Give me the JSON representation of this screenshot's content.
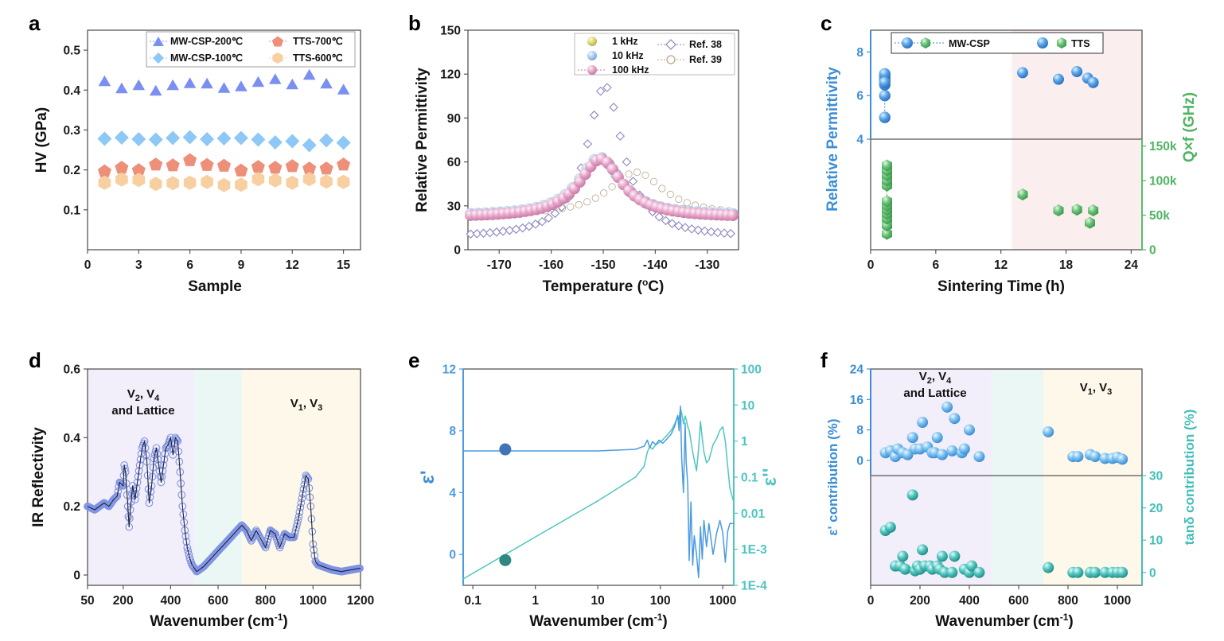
{
  "chart_data": [
    {
      "panel": "a",
      "type": "scatter",
      "xlabel": "Sample",
      "ylabel": "HV (GPa)",
      "xlim": [
        0,
        16
      ],
      "ylim": [
        0,
        0.55
      ],
      "xticks": [
        "0",
        "3",
        "6",
        "9",
        "12",
        "15"
      ],
      "yticks": [
        "0.1",
        "0.2",
        "0.3",
        "0.4",
        "0.5"
      ],
      "legend_position": "top",
      "x": [
        1,
        2,
        3,
        4,
        5,
        6,
        7,
        8,
        9,
        10,
        11,
        12,
        13,
        14,
        15
      ],
      "series": [
        {
          "name": "MW-CSP-200℃",
          "color": "#7b8ff0",
          "marker": "triangle",
          "values": [
            0.421,
            0.403,
            0.411,
            0.397,
            0.411,
            0.416,
            0.415,
            0.404,
            0.408,
            0.419,
            0.426,
            0.413,
            0.437,
            0.415,
            0.4
          ]
        },
        {
          "name": "MW-CSP-100℃",
          "color": "#8dc8f6",
          "marker": "diamond",
          "values": [
            0.278,
            0.281,
            0.277,
            0.276,
            0.28,
            0.282,
            0.277,
            0.279,
            0.28,
            0.276,
            0.269,
            0.272,
            0.262,
            0.274,
            0.268
          ]
        },
        {
          "name": "TTS-700℃",
          "color": "#ee8f7a",
          "marker": "pentagon",
          "values": [
            0.196,
            0.205,
            0.199,
            0.213,
            0.211,
            0.224,
            0.212,
            0.21,
            0.198,
            0.207,
            0.205,
            0.209,
            0.203,
            0.203,
            0.213
          ]
        },
        {
          "name": "TTS-600℃",
          "color": "#f8cfa0",
          "marker": "hexagon",
          "values": [
            0.168,
            0.176,
            0.175,
            0.165,
            0.167,
            0.168,
            0.17,
            0.162,
            0.163,
            0.177,
            0.174,
            0.168,
            0.177,
            0.171,
            0.17
          ]
        }
      ]
    },
    {
      "panel": "b",
      "type": "line",
      "xlabel": "Temperature (",
      "xlabel_sup": "o",
      "xlabel_end": "C)",
      "ylabel": "Relative Permittivity",
      "xlim": [
        -176,
        -124
      ],
      "ylim": [
        0,
        150
      ],
      "xticks": [
        "-170",
        "-160",
        "-150",
        "-140",
        "-130"
      ],
      "yticks": [
        "0",
        "30",
        "60",
        "90",
        "120",
        "150"
      ],
      "legend_position": "top-right",
      "series": [
        {
          "name": "1 kHz",
          "color": "#d8d87a",
          "marker": "sphere",
          "model": "peak",
          "peak_x": -150.7,
          "peak_y": 63,
          "base": 23,
          "width": 5
        },
        {
          "name": "10 kHz",
          "color": "#a8cdf0",
          "marker": "sphere",
          "model": "peak",
          "peak_x": -150.7,
          "peak_y": 63,
          "base": 23,
          "width": 5
        },
        {
          "name": "100 kHz",
          "color": "#e4a6c7",
          "marker": "sphere",
          "model": "peak",
          "peak_x": -150.5,
          "peak_y": 62,
          "base": 22,
          "width": 5
        },
        {
          "name": "Ref. 38",
          "color": "#8a87bf",
          "marker": "open-diamond",
          "model": "peak",
          "peak_x": -149.7,
          "peak_y": 112,
          "base": 8,
          "width": 4.2
        },
        {
          "name": "Ref. 39",
          "color": "#b9a48d",
          "marker": "open-circle",
          "model": "peak",
          "peak_x": -143.7,
          "peak_y": 53,
          "base": 23,
          "width": 6.5
        }
      ]
    },
    {
      "panel": "c",
      "type": "scatter",
      "xlabel": "Sintering Time",
      "xlabel_unit": "(h)",
      "ylabel_left": "Relative Permittivity",
      "ylabel_right": "Q×f (GHz)",
      "xlim": [
        0,
        25
      ],
      "ylim_top": [
        4,
        9
      ],
      "ylim_bottom": [
        0,
        160000
      ],
      "xticks": [
        "0",
        "6",
        "12",
        "18",
        "24"
      ],
      "yticks_top": [
        "4",
        "6",
        "8"
      ],
      "yticks_bottom": [
        "0",
        "50k",
        "100k",
        "150k"
      ],
      "shaded_from": 13,
      "legend": {
        "csp": "MW-CSP",
        "tts": "TTS"
      },
      "csp_permittivity": {
        "x": [
          1.3,
          1.3,
          1.3,
          1.3,
          1.3,
          1.3,
          1.3,
          1.3
        ],
        "y": [
          5.0,
          6.0,
          6.5,
          6.7,
          6.8,
          6.9,
          7.0,
          6.6
        ]
      },
      "tts_permittivity": {
        "x": [
          14,
          17.3,
          19,
          20,
          20.5
        ],
        "y": [
          7.05,
          6.75,
          7.1,
          6.8,
          6.6
        ]
      },
      "csp_qf": {
        "x": [
          1.5,
          1.5,
          1.5,
          1.5,
          1.5,
          1.5,
          1.5,
          1.5,
          1.5,
          1.5,
          1.5,
          1.5
        ],
        "y": [
          23000,
          35000,
          45000,
          52000,
          58000,
          64000,
          70000,
          93000,
          100000,
          108000,
          115000,
          122000
        ]
      },
      "tts_qf": {
        "x": [
          14,
          17.3,
          19,
          20.2,
          20.5
        ],
        "y": [
          80000,
          57000,
          58000,
          39000,
          57000
        ]
      }
    },
    {
      "panel": "d",
      "type": "line",
      "xlabel": "Wavenumber",
      "xlabel_unit": "(cm-1)",
      "ylabel": "IR Reflectivity",
      "xlim": [
        50,
        1200
      ],
      "ylim": [
        -0.03,
        0.6
      ],
      "xticks": [
        "50",
        "200",
        "400",
        "600",
        "800",
        "1000",
        "1200"
      ],
      "yticks": [
        "0",
        "0.2",
        "0.4",
        "0.6"
      ],
      "regions": [
        {
          "from": 50,
          "to": 500,
          "label": "V2, V4 and Lattice"
        },
        {
          "from": 500,
          "to": 700
        },
        {
          "from": 700,
          "to": 1200,
          "label": "V1, V3"
        }
      ],
      "annotation_left": {
        "l1": "V",
        "s1": "2",
        "l2": ", V",
        "s2": "4",
        "l3": "and Lattice"
      },
      "annotation_right": {
        "l1": "V",
        "s1": "1",
        "l2": ", V",
        "s2": "3"
      },
      "series": [
        {
          "name": "IR reflectivity",
          "color": "#7f93e6",
          "x": [
            50,
            80,
            100,
            120,
            140,
            160,
            175,
            185,
            200,
            205,
            210,
            220,
            225,
            230,
            240,
            250,
            260,
            270,
            280,
            290,
            300,
            310,
            320,
            330,
            340,
            350,
            360,
            370,
            380,
            390,
            400,
            410,
            420,
            430,
            440,
            450,
            460,
            470,
            480,
            490,
            500,
            510,
            520,
            540,
            560,
            600,
            640,
            680,
            700,
            720,
            740,
            760,
            780,
            800,
            820,
            840,
            860,
            880,
            900,
            920,
            940,
            950,
            960,
            970,
            980,
            990,
            1000,
            1010,
            1020,
            1040,
            1080,
            1120,
            1160,
            1200
          ],
          "y": [
            0.2,
            0.19,
            0.2,
            0.21,
            0.2,
            0.22,
            0.23,
            0.27,
            0.26,
            0.32,
            0.3,
            0.2,
            0.14,
            0.19,
            0.26,
            0.22,
            0.27,
            0.32,
            0.37,
            0.39,
            0.33,
            0.21,
            0.26,
            0.34,
            0.37,
            0.32,
            0.27,
            0.32,
            0.37,
            0.38,
            0.4,
            0.35,
            0.4,
            0.39,
            0.3,
            0.2,
            0.13,
            0.08,
            0.05,
            0.03,
            0.02,
            0.01,
            0.015,
            0.025,
            0.04,
            0.07,
            0.1,
            0.13,
            0.145,
            0.13,
            0.1,
            0.13,
            0.105,
            0.08,
            0.13,
            0.12,
            0.08,
            0.12,
            0.11,
            0.11,
            0.17,
            0.21,
            0.25,
            0.29,
            0.28,
            0.2,
            0.09,
            0.04,
            0.03,
            0.025,
            0.015,
            0.01,
            0.015,
            0.02
          ]
        }
      ]
    },
    {
      "panel": "e",
      "type": "line",
      "xlabel": "Wavenumber",
      "xlabel_unit": "(cm-1)",
      "ylabel_left": "ε'",
      "ylabel_right": "ε''",
      "xlim_log": [
        0.07,
        1500
      ],
      "ylim_left": [
        -2,
        12
      ],
      "xticks": [
        "0.1",
        "1",
        "10",
        "100",
        "1000"
      ],
      "yticks_left": [
        "0",
        "4",
        "8",
        "12"
      ],
      "yticks_right": [
        "1E-4",
        "1E-3",
        "0.01",
        "0.1",
        "1",
        "10",
        "100"
      ],
      "marker_left": {
        "x": 0.33,
        "y": 6.8
      },
      "marker_right": {
        "x": 0.33,
        "y": 0.0005
      },
      "series": [
        {
          "name": "ε'",
          "color": "#4a9be0",
          "x": [
            0.07,
            1,
            10,
            40,
            55,
            62,
            68,
            75,
            85,
            95,
            110,
            130,
            150,
            170,
            190,
            200,
            210,
            220,
            235,
            250,
            260,
            275,
            290,
            310,
            330,
            350,
            380,
            410,
            440,
            470,
            500,
            550,
            600,
            700,
            800,
            900,
            1000,
            1100,
            1200,
            1300,
            1500
          ],
          "y": [
            6.7,
            6.7,
            6.7,
            6.8,
            7.0,
            7.4,
            6.9,
            7.3,
            7.1,
            7.4,
            7.2,
            7.5,
            7.8,
            8.3,
            9.0,
            8.0,
            9.6,
            6.2,
            4.0,
            8.5,
            6.0,
            4.5,
            -0.4,
            3.4,
            -0.7,
            1.2,
            0.0,
            -1.5,
            1.8,
            -0.3,
            2.2,
            0.5,
            2.0,
            0.0,
            1.4,
            2.2,
            1.4,
            -0.5,
            1.5,
            2.0,
            2.0
          ]
        },
        {
          "name": "ε''",
          "color": "#4fc5bf",
          "x": [
            0.07,
            1,
            10,
            40,
            55,
            62,
            68,
            75,
            85,
            95,
            110,
            130,
            150,
            170,
            190,
            200,
            210,
            220,
            235,
            250,
            260,
            275,
            290,
            310,
            330,
            350,
            380,
            410,
            440,
            470,
            500,
            550,
            600,
            700,
            800,
            900,
            1000,
            1100,
            1200,
            1300,
            1500
          ],
          "y": [
            0.00015,
            0.0022,
            0.022,
            0.1,
            0.2,
            0.5,
            0.7,
            0.6,
            0.8,
            0.9,
            1.1,
            1.5,
            2.0,
            3.0,
            5.0,
            4.0,
            8.0,
            6.0,
            3.0,
            5.0,
            4.0,
            2.5,
            2.0,
            1.0,
            0.5,
            0.3,
            0.15,
            0.6,
            3.5,
            1.2,
            0.5,
            0.25,
            0.3,
            0.8,
            1.2,
            2.0,
            2.5,
            1.0,
            0.2,
            0.05,
            0.02
          ]
        }
      ]
    },
    {
      "panel": "f",
      "type": "scatter",
      "xlabel": "Wavenumber",
      "xlabel_unit": "(cm-1)",
      "ylabel_left": "ε' contribution (%)",
      "ylabel_right": "tanδ contribution (%)",
      "xlim": [
        0,
        1100
      ],
      "ylim_top": [
        -4,
        24
      ],
      "ylim_bottom": [
        -4,
        30
      ],
      "xticks": [
        "0",
        "200",
        "400",
        "600",
        "800",
        "1000"
      ],
      "yticks_top": [
        "0",
        "8",
        "16",
        "24"
      ],
      "yticks_bottom": [
        "0",
        "10",
        "20",
        "30"
      ],
      "regions": [
        {
          "from": 0,
          "to": 490
        },
        {
          "from": 490,
          "to": 700
        },
        {
          "from": 700,
          "to": 1100
        }
      ],
      "annotation_left": {
        "l1": "V",
        "s1": "2",
        "l2": ", V",
        "s2": "4",
        "l3": "and Lattice"
      },
      "annotation_right": {
        "l1": "V",
        "s1": "1",
        "l2": ", V",
        "s2": "3"
      },
      "eps": {
        "color": "#6ab3ec",
        "x": [
          60,
          80,
          100,
          110,
          130,
          150,
          170,
          180,
          200,
          210,
          230,
          250,
          260,
          270,
          290,
          310,
          330,
          340,
          370,
          380,
          400,
          440,
          720,
          820,
          840,
          890,
          910,
          950,
          980,
          1000,
          1020
        ],
        "y": [
          2,
          2.5,
          1,
          3,
          2,
          1.5,
          6,
          3,
          3,
          10,
          3.5,
          2,
          2,
          6,
          1.5,
          14,
          2.5,
          11,
          2,
          3,
          8,
          1,
          7.5,
          1,
          1,
          1.5,
          1,
          0.5,
          0.5,
          0.8,
          0.3
        ]
      },
      "tan": {
        "color": "#41beb8",
        "x": [
          60,
          80,
          100,
          120,
          130,
          140,
          170,
          180,
          190,
          200,
          210,
          220,
          240,
          250,
          270,
          280,
          290,
          300,
          330,
          340,
          380,
          400,
          410,
          440,
          720,
          820,
          840,
          890,
          910,
          950,
          980,
          1000,
          1020
        ],
        "y": [
          13,
          14,
          2,
          2,
          5,
          1,
          24,
          0.5,
          2,
          1,
          7,
          2,
          2,
          1,
          2,
          1,
          5,
          0,
          0,
          5,
          1,
          0,
          2,
          0,
          1.5,
          0,
          0,
          0,
          0,
          0,
          0,
          0,
          0
        ]
      }
    }
  ]
}
